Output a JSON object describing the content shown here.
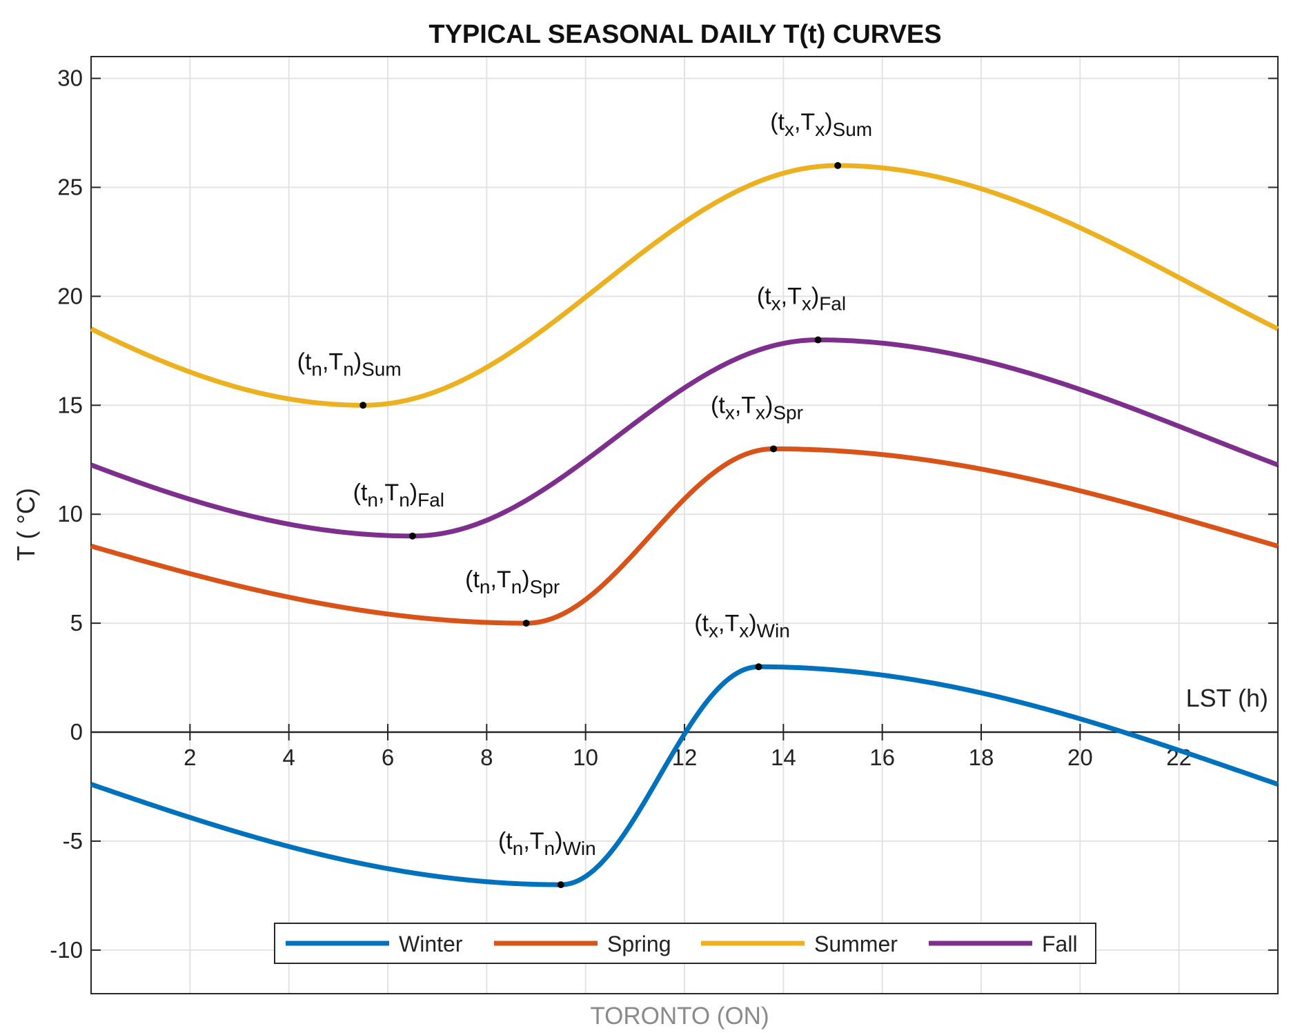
{
  "chart_data": {
    "type": "line",
    "title": "TYPICAL SEASONAL DAILY T(t) CURVES",
    "xlabel": "LST (h)",
    "ylabel": "T ( °C)",
    "subtitle": "TORONTO (ON)",
    "xlim": [
      0,
      24
    ],
    "ylim": [
      -12,
      31
    ],
    "xticks": [
      "2",
      "4",
      "6",
      "8",
      "10",
      "12",
      "14",
      "16",
      "18",
      "20",
      "22"
    ],
    "yticks": [
      "-10",
      "-5",
      "0",
      "5",
      "10",
      "15",
      "20",
      "25",
      "30"
    ],
    "grid": true,
    "legend": "bottom-center",
    "series": [
      {
        "name": "Winter",
        "color": "#0072BD",
        "tn": 9.5,
        "Tn": -7,
        "tx": 13.5,
        "Tx": 3,
        "ann_min": {
          "base": "(t",
          "mid": ",T",
          "end": ")",
          "sub1": "n",
          "sub2": "n",
          "sub3": "Win"
        },
        "ann_max": {
          "base": "(t",
          "mid": ",T",
          "end": ")",
          "sub1": "x",
          "sub2": "x",
          "sub3": "Win"
        }
      },
      {
        "name": "Spring",
        "color": "#D95319",
        "tn": 8.8,
        "Tn": 5,
        "tx": 13.8,
        "Tx": 13,
        "ann_min": {
          "base": "(t",
          "mid": ",T",
          "end": ")",
          "sub1": "n",
          "sub2": "n",
          "sub3": "Spr"
        },
        "ann_max": {
          "base": "(t",
          "mid": ",T",
          "end": ")",
          "sub1": "x",
          "sub2": "x",
          "sub3": "Spr"
        }
      },
      {
        "name": "Summer",
        "color": "#EDB120",
        "tn": 5.5,
        "Tn": 15,
        "tx": 15.1,
        "Tx": 26,
        "ann_min": {
          "base": "(t",
          "mid": ",T",
          "end": ")",
          "sub1": "n",
          "sub2": "n",
          "sub3": "Sum"
        },
        "ann_max": {
          "base": "(t",
          "mid": ",T",
          "end": ")",
          "sub1": "x",
          "sub2": "x",
          "sub3": "Sum"
        }
      },
      {
        "name": "Fall",
        "color": "#7E2F8E",
        "tn": 6.5,
        "Tn": 9,
        "tx": 14.7,
        "Tx": 18,
        "ann_min": {
          "base": "(t",
          "mid": ",T",
          "end": ")",
          "sub1": "n",
          "sub2": "n",
          "sub3": "Fal"
        },
        "ann_max": {
          "base": "(t",
          "mid": ",T",
          "end": ")",
          "sub1": "x",
          "sub2": "x",
          "sub3": "Fal"
        }
      }
    ]
  }
}
